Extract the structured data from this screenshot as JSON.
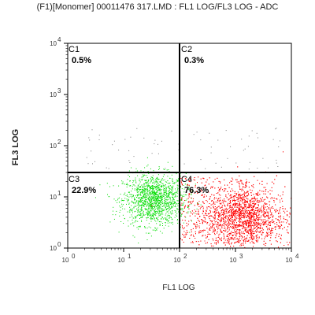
{
  "chart_data": {
    "type": "scatter",
    "title": "(F1)[Monomer] 00011476 317.LMD : FL1 LOG/FL3 LOG - ADC",
    "xlabel": "FL1 LOG",
    "ylabel": "FL3 LOG",
    "x_scale": "log",
    "y_scale": "log",
    "xlim": [
      1,
      10000
    ],
    "ylim": [
      1,
      10000
    ],
    "x_ticks": [
      {
        "value": 1,
        "base": "10",
        "exp": "0"
      },
      {
        "value": 10,
        "base": "10",
        "exp": "1"
      },
      {
        "value": 100,
        "base": "10",
        "exp": "2"
      },
      {
        "value": 1000,
        "base": "10",
        "exp": "3"
      },
      {
        "value": 10000,
        "base": "10",
        "exp": "4"
      }
    ],
    "y_ticks": [
      {
        "value": 1,
        "base": "10",
        "exp": "0"
      },
      {
        "value": 10,
        "base": "10",
        "exp": "1"
      },
      {
        "value": 100,
        "base": "10",
        "exp": "2"
      },
      {
        "value": 1000,
        "base": "10",
        "exp": "3"
      },
      {
        "value": 10000,
        "base": "10",
        "exp": "4"
      }
    ],
    "gates": {
      "x": 100,
      "y": 30
    },
    "quadrants": [
      {
        "label": "C1",
        "percent": "0.5%",
        "position": "top-left"
      },
      {
        "label": "C2",
        "percent": "0.3%",
        "position": "top-right"
      },
      {
        "label": "C3",
        "percent": "22.9%",
        "position": "bottom-left"
      },
      {
        "label": "C4",
        "percent": "76.3%",
        "position": "bottom-right"
      }
    ],
    "populations": [
      {
        "quadrant": "C3",
        "color": "#00dd00",
        "center_x": 35,
        "center_y": 9,
        "spread_x_decades": 0.28,
        "spread_y_decades": 0.25
      },
      {
        "quadrant": "C4",
        "color": "#ff0000",
        "center_x": 1500,
        "center_y": 4,
        "spread_x_decades": 0.35,
        "spread_y_decades": 0.3
      }
    ],
    "colors": {
      "axis": "#000000",
      "sparse_events": "#808080"
    }
  }
}
